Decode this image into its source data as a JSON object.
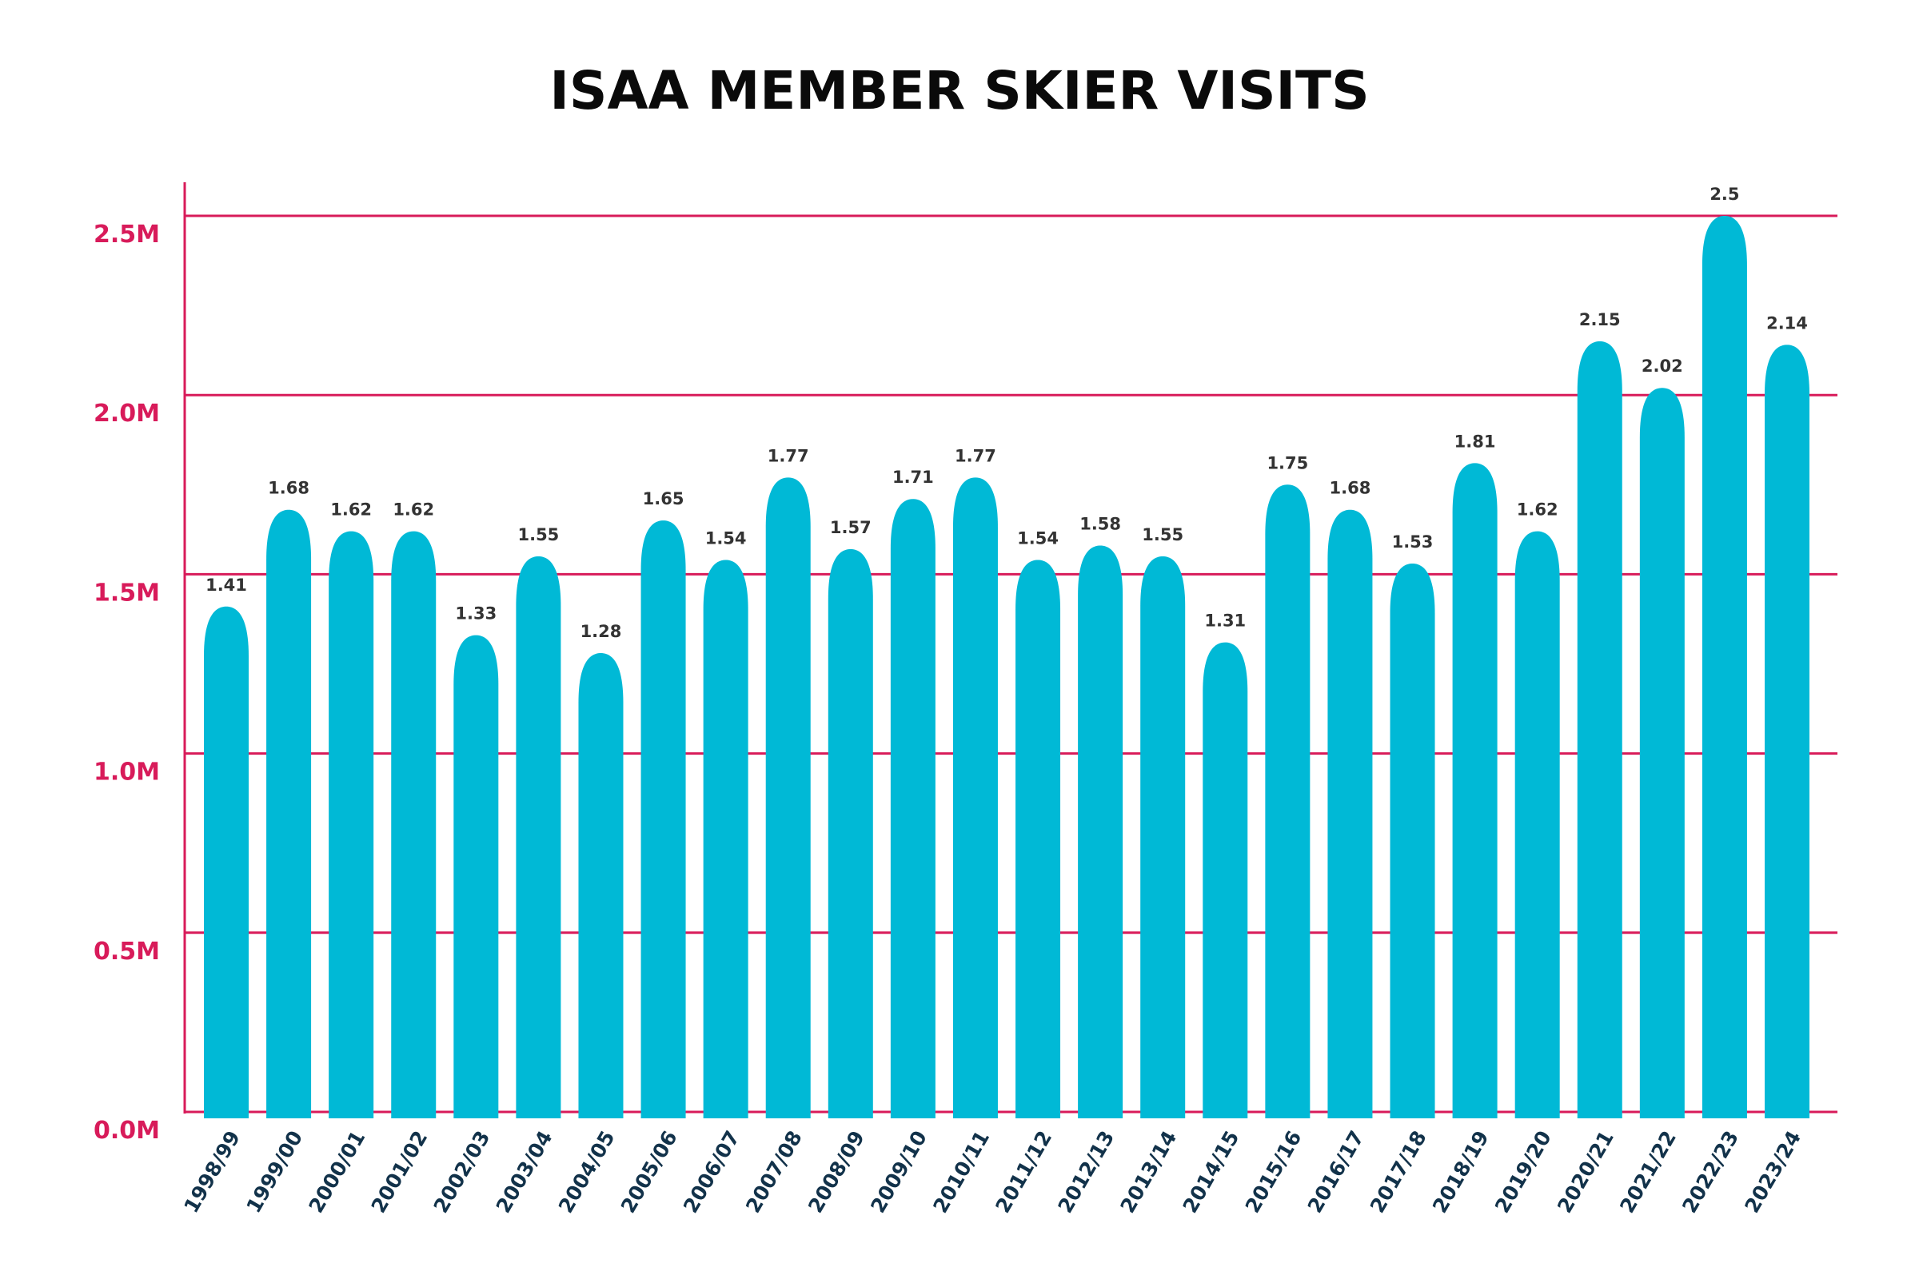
{
  "chart_data": {
    "type": "bar",
    "title": "ISAA MEMBER SKIER VISITS",
    "xlabel": "",
    "ylabel": "",
    "ylim": [
      0,
      2.5
    ],
    "yticks": [
      0,
      0.5,
      1.0,
      1.5,
      2.0,
      2.5
    ],
    "ytick_labels": [
      "0.0M",
      "0.5M",
      "1.0M",
      "1.5M",
      "2.0M",
      "2.5M"
    ],
    "grid": true,
    "categories": [
      "1998/99",
      "1999/00",
      "2000/01",
      "2001/02",
      "2002/03",
      "2003/04",
      "2004/05",
      "2005/06",
      "2006/07",
      "2007/08",
      "2008/09",
      "2009/10",
      "2010/11",
      "2011/12",
      "2012/13",
      "2013/14",
      "2014/15",
      "2015/16",
      "2016/17",
      "2017/18",
      "2018/19",
      "2019/20",
      "2020/21",
      "2021/22",
      "2022/23",
      "2023/24"
    ],
    "values": [
      1.41,
      1.68,
      1.62,
      1.62,
      1.33,
      1.55,
      1.28,
      1.65,
      1.54,
      1.77,
      1.57,
      1.71,
      1.77,
      1.54,
      1.58,
      1.55,
      1.31,
      1.75,
      1.68,
      1.53,
      1.81,
      1.62,
      2.15,
      2.02,
      2.5,
      2.14
    ],
    "value_labels": [
      "1.41",
      "1.68",
      "1.62",
      "1.62",
      "1.33",
      "1.55",
      "1.28",
      "1.65",
      "1.54",
      "1.77",
      "1.57",
      "1.71",
      "1.77",
      "1.54",
      "1.58",
      "1.55",
      "1.31",
      "1.75",
      "1.68",
      "1.53",
      "1.81",
      "1.62",
      "2.15",
      "2.02",
      "2.5",
      "2.14"
    ],
    "colors": {
      "bar": "#00b9d6",
      "grid": "#d81b5a",
      "axis_labels": "#d81b5a",
      "category_labels": "#12324a",
      "value_labels": "#333333",
      "title": "#0a0a0a"
    }
  }
}
